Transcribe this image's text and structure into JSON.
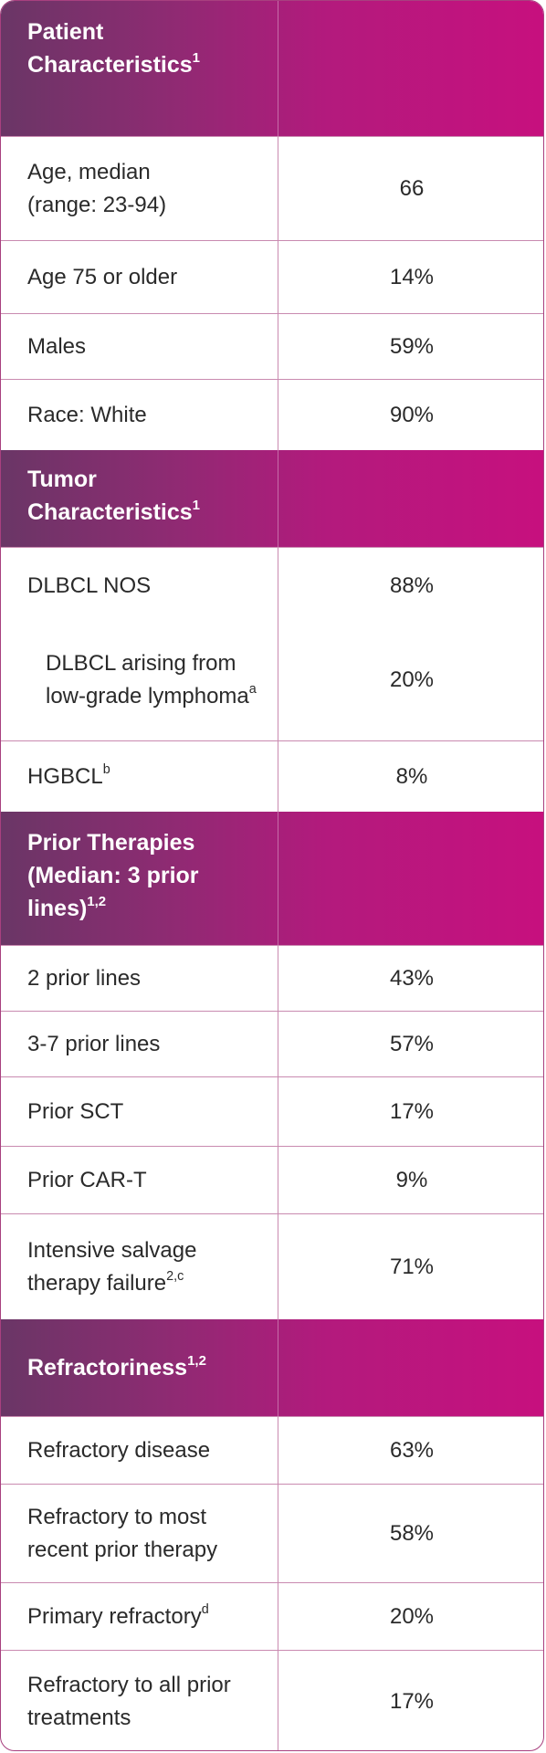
{
  "sections": [
    {
      "header": {
        "title": "Patient Characteristics",
        "sup": "1"
      },
      "rows": [
        {
          "label": "Age, median (range: 23-94)",
          "sup": "",
          "value": "66"
        },
        {
          "label": "Age 75 or older",
          "sup": "",
          "value": "14%"
        },
        {
          "label": "Males",
          "sup": "",
          "value": "59%"
        },
        {
          "label": "Race: White",
          "sup": "",
          "value": "90%"
        }
      ]
    },
    {
      "header": {
        "title": "Tumor Characteristics",
        "sup": "1"
      },
      "rows": [
        {
          "label": "DLBCL NOS",
          "sup": "",
          "value": "88%"
        },
        {
          "label": "DLBCL arising from low-grade lymphoma",
          "sup": "a",
          "value": "20%"
        },
        {
          "label": "HGBCL",
          "sup": "b",
          "value": "8%"
        }
      ]
    },
    {
      "header": {
        "title": "Prior Therapies (Median: 3 prior lines)",
        "sup": "1,2"
      },
      "rows": [
        {
          "label": "2 prior lines",
          "sup": "",
          "value": "43%"
        },
        {
          "label": "3-7 prior lines",
          "sup": "",
          "value": "57%"
        },
        {
          "label": "Prior SCT",
          "sup": "",
          "value": "17%"
        },
        {
          "label": "Prior CAR-T",
          "sup": "",
          "value": "9%"
        },
        {
          "label": "Intensive salvage therapy failure",
          "sup": "2,c",
          "value": "71%"
        }
      ]
    },
    {
      "header": {
        "title": "Refractoriness",
        "sup": "1,2"
      },
      "rows": [
        {
          "label": "Refractory disease",
          "sup": "",
          "value": "63%"
        },
        {
          "label": "Refractory to most recent prior therapy",
          "sup": "",
          "value": "58%"
        },
        {
          "label": "Primary refractory",
          "sup": "d",
          "value": "20%"
        },
        {
          "label": "Refractory to all prior treatments",
          "sup": "",
          "value": "17%"
        }
      ]
    }
  ]
}
